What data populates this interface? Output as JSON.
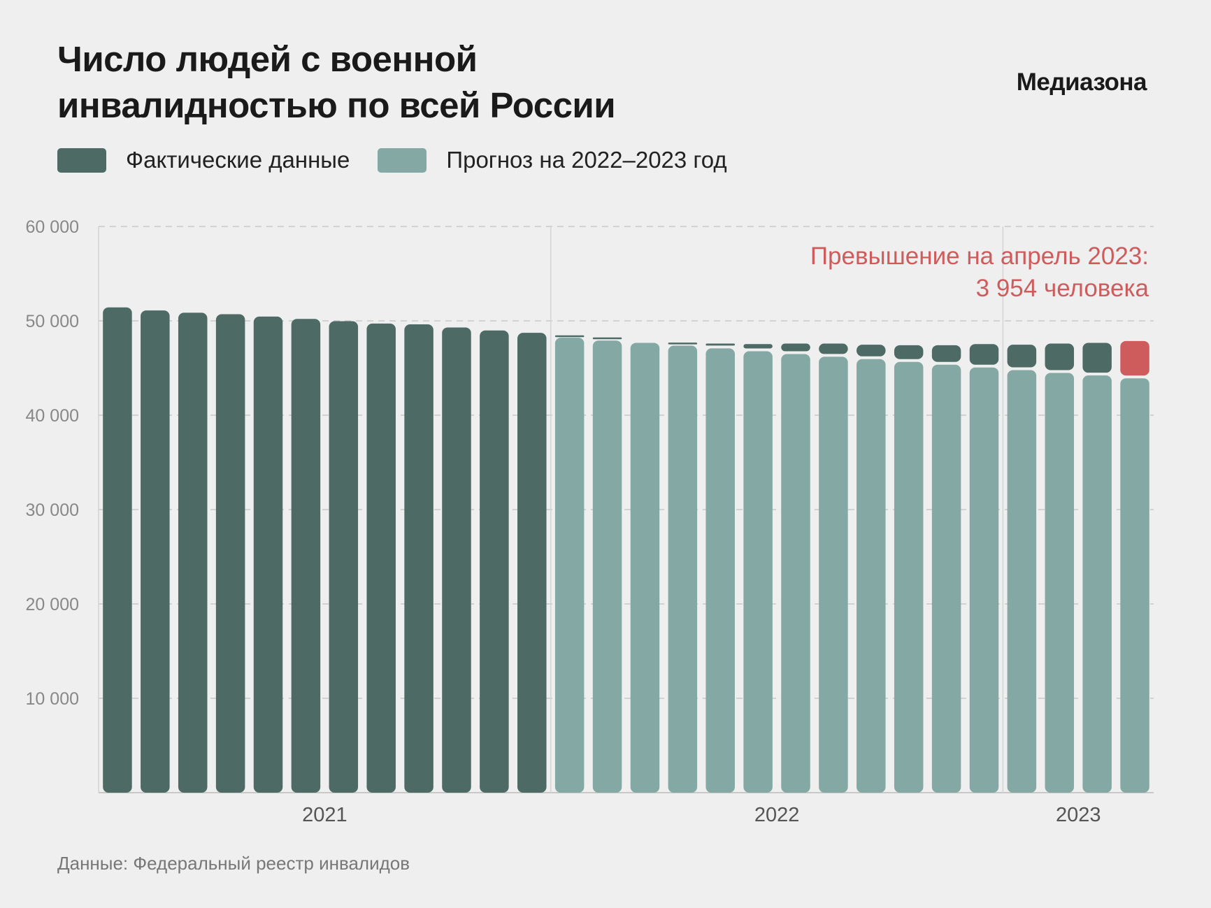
{
  "title_lines": [
    "Число людей с военной",
    "инвалидностью по всей России"
  ],
  "logo": "Медиазона",
  "source": "Данные: Федеральный реестр инвалидов",
  "colors": {
    "actual": "#4d6a65",
    "forecast": "#84a8a3",
    "excess_highlight": "#cf5c5c",
    "background": "#efefef"
  },
  "chart_data": {
    "type": "bar",
    "legend": [
      {
        "name": "Фактические данные",
        "color": "#4d6a65"
      },
      {
        "name": "Прогноз на 2022–2023 год",
        "color": "#84a8a3"
      }
    ],
    "legend_position": "top-left",
    "ylim": [
      0,
      60000
    ],
    "y_ticks": [
      10000,
      20000,
      30000,
      40000,
      50000,
      60000
    ],
    "y_tick_labels": [
      "10 000",
      "20 000",
      "30 000",
      "40 000",
      "50 000",
      "60 000"
    ],
    "grid": true,
    "x_years": [
      {
        "label": "2021",
        "months": 12
      },
      {
        "label": "2022",
        "months": 12
      },
      {
        "label": "2023",
        "months": 4
      }
    ],
    "actual_2021": [
      51430,
      51100,
      50860,
      50700,
      50450,
      50200,
      49960,
      49710,
      49630,
      49300,
      48980,
      48730
    ],
    "forecast_2022_2023": [
      48210,
      47910,
      47670,
      47370,
      47080,
      46780,
      46480,
      46190,
      45940,
      45650,
      45350,
      45060,
      44780,
      44480,
      44210,
      43910
    ],
    "actual_2022_2023": [
      48460,
      48240,
      47670,
      47690,
      47590,
      47540,
      47590,
      47590,
      47470,
      47420,
      47420,
      47540,
      47470,
      47590,
      47670,
      47864
    ],
    "annotation": {
      "lines": [
        "Превышение на апрель 2023:",
        "3 954 человека"
      ],
      "value": 3954
    }
  }
}
